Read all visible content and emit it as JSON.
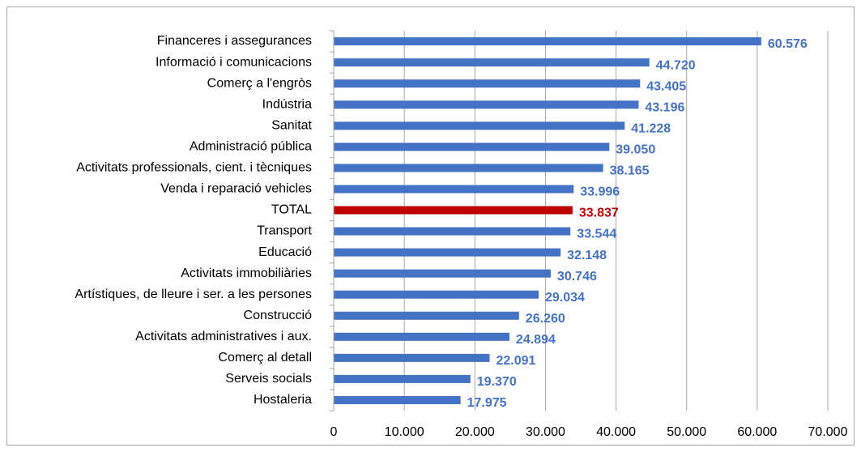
{
  "chart_data": {
    "type": "bar",
    "orientation": "horizontal",
    "categories": [
      "Financeres i assegurances",
      "Informació i comunicacions",
      "Comerç a l'engròs",
      "Indústria",
      "Sanitat",
      "Administració pública",
      "Activitats professionals, cient. i tècniques",
      "Venda i reparació vehicles",
      "TOTAL",
      "Transport",
      "Educació",
      "Activitats immobiliàries",
      "Artístiques, de lleure i ser. a les persones",
      "Construcció",
      "Activitats administratives i aux.",
      "Comerç al detall",
      "Serveis socials",
      "Hostaleria"
    ],
    "values": [
      60576,
      44720,
      43405,
      43196,
      41228,
      39050,
      38165,
      33996,
      33837,
      33544,
      32148,
      30746,
      29034,
      26260,
      24894,
      22091,
      19370,
      17975
    ],
    "value_labels": [
      "60.576",
      "44.720",
      "43.405",
      "43.196",
      "41.228",
      "39.050",
      "38.165",
      "33.996",
      "33.837",
      "33.544",
      "32.148",
      "30.746",
      "29.034",
      "26.260",
      "24.894",
      "22.091",
      "19.370",
      "17.975"
    ],
    "colors": [
      "#4472c4",
      "#4472c4",
      "#4472c4",
      "#4472c4",
      "#4472c4",
      "#4472c4",
      "#4472c4",
      "#4472c4",
      "#c00000",
      "#4472c4",
      "#4472c4",
      "#4472c4",
      "#4472c4",
      "#4472c4",
      "#4472c4",
      "#4472c4",
      "#4472c4",
      "#4472c4"
    ],
    "xlim": [
      0,
      70000
    ],
    "xticks": [
      0,
      {
        "value": 10000,
        "label": "10.000"
      },
      {
        "value": 20000,
        "label": "20.000"
      },
      {
        "value": 30000,
        "label": "30.000"
      },
      {
        "value": 40000,
        "label": "40.000"
      },
      {
        "value": 50000,
        "label": "50.000"
      },
      {
        "value": 60000,
        "label": "60.000"
      },
      {
        "value": 70000,
        "label": "70.000"
      }
    ],
    "grid": true
  }
}
